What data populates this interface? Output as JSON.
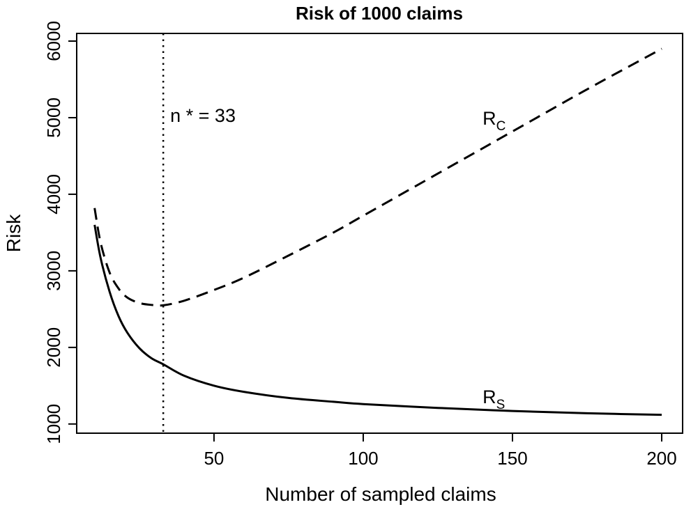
{
  "chart_data": {
    "type": "line",
    "title": "Risk of 1000 claims",
    "xlabel": "Number of sampled claims",
    "ylabel": "Risk",
    "xlim": [
      4,
      207
    ],
    "ylim": [
      880,
      6100
    ],
    "xticks": [
      50,
      100,
      150,
      200
    ],
    "yticks": [
      1000,
      2000,
      3000,
      4000,
      5000,
      6000
    ],
    "grid": false,
    "vline": {
      "x": 33,
      "style": "dotted",
      "label": "n * = 33"
    },
    "series": [
      {
        "name": "R",
        "subscript": "S",
        "style": "solid",
        "color": "#000000",
        "x": [
          10,
          12,
          15,
          18,
          21,
          25,
          29,
          33,
          40,
          50,
          60,
          75,
          90,
          100,
          125,
          150,
          175,
          200
        ],
        "y": [
          3600,
          3170,
          2730,
          2410,
          2190,
          1990,
          1860,
          1780,
          1630,
          1500,
          1420,
          1340,
          1290,
          1260,
          1210,
          1170,
          1140,
          1120
        ]
      },
      {
        "name": "R",
        "subscript": "C",
        "style": "dashed",
        "color": "#000000",
        "x": [
          10,
          12,
          15,
          18,
          21,
          25,
          29,
          33,
          40,
          50,
          60,
          75,
          90,
          100,
          125,
          150,
          175,
          200
        ],
        "y": [
          3820,
          3370,
          2980,
          2770,
          2650,
          2580,
          2555,
          2550,
          2610,
          2750,
          2910,
          3200,
          3500,
          3720,
          4270,
          4820,
          5370,
          5900
        ]
      }
    ],
    "annotations": [
      {
        "text": "R",
        "subscript": "C",
        "x": 140,
        "y": 5000
      },
      {
        "text": "R",
        "subscript": "S",
        "x": 140,
        "y": 1360
      }
    ]
  }
}
